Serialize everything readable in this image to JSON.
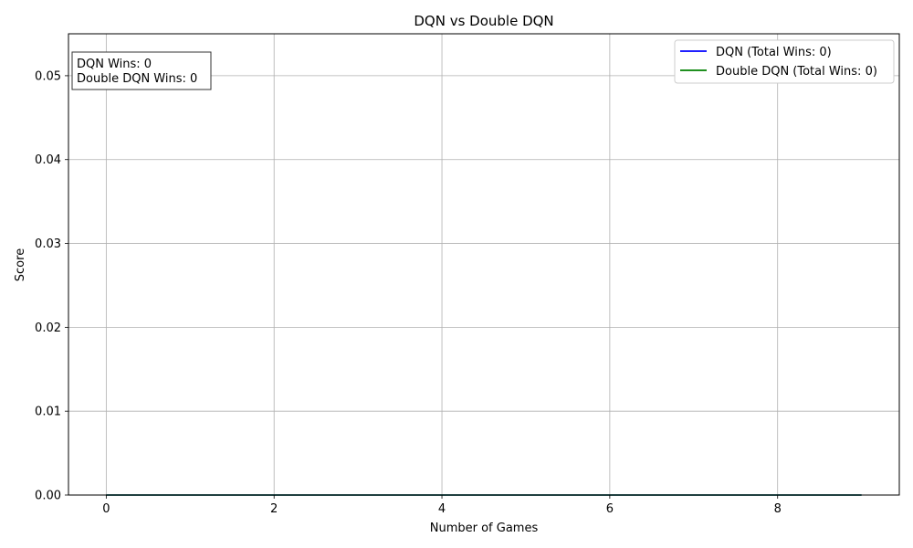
{
  "chart_data": {
    "type": "line",
    "title": "DQN vs Double DQN",
    "xlabel": "Number of Games",
    "ylabel": "Score",
    "xlim": [
      -0.45,
      9.45
    ],
    "ylim": [
      0,
      0.055
    ],
    "x_ticks": [
      0,
      2,
      4,
      6,
      8
    ],
    "x_tick_labels": [
      "0",
      "2",
      "4",
      "6",
      "8"
    ],
    "y_ticks": [
      0,
      0.01,
      0.02,
      0.03,
      0.04,
      0.05
    ],
    "y_tick_labels": [
      "0.00",
      "0.01",
      "0.02",
      "0.03",
      "0.04",
      "0.05"
    ],
    "grid": true,
    "legend_position": "top-right",
    "x": [
      0,
      1,
      2,
      3,
      4,
      5,
      6,
      7,
      8,
      9
    ],
    "series": [
      {
        "name": "DQN (Total Wins: 0)",
        "color": "#0000ff",
        "values": [
          0,
          0,
          0,
          0,
          0,
          0,
          0,
          0,
          0,
          0
        ]
      },
      {
        "name": "Double DQN (Total Wins: 0)",
        "color": "#008000",
        "values": [
          0,
          0,
          0,
          0,
          0,
          0,
          0,
          0,
          0,
          0
        ]
      }
    ],
    "annotation": {
      "position": "top-left",
      "lines": [
        "DQN Wins: 0",
        "Double DQN Wins: 0"
      ]
    }
  }
}
